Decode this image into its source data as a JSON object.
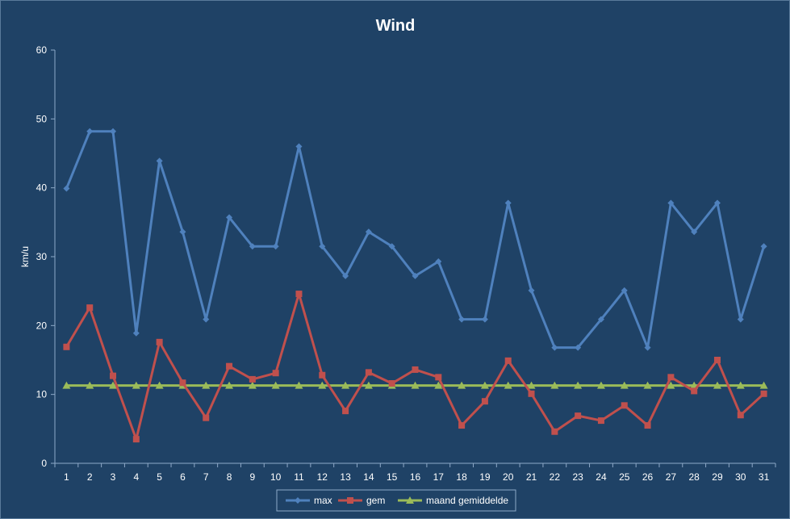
{
  "chart_data": {
    "type": "line",
    "title": "Wind",
    "xlabel": "",
    "ylabel": "km/u",
    "ylim": [
      0,
      60
    ],
    "yticks": [
      0,
      10,
      20,
      30,
      40,
      50,
      60
    ],
    "categories": [
      "1",
      "2",
      "3",
      "4",
      "5",
      "6",
      "7",
      "8",
      "9",
      "10",
      "11",
      "12",
      "13",
      "14",
      "15",
      "16",
      "17",
      "18",
      "19",
      "20",
      "21",
      "22",
      "23",
      "24",
      "25",
      "26",
      "27",
      "28",
      "29",
      "30",
      "31"
    ],
    "grid": false,
    "legend_position": "bottom",
    "series": [
      {
        "name": "max",
        "color": "#4f81bd",
        "marker": "diamond",
        "values": [
          39.9,
          48.2,
          48.2,
          18.9,
          43.9,
          33.6,
          20.9,
          35.7,
          31.5,
          31.5,
          46.0,
          31.5,
          27.2,
          33.6,
          31.5,
          27.2,
          29.3,
          20.9,
          20.9,
          37.8,
          25.1,
          16.8,
          16.8,
          20.9,
          25.1,
          16.8,
          37.8,
          33.6,
          37.8,
          20.9,
          31.5
        ]
      },
      {
        "name": "gem",
        "color": "#c0504d",
        "marker": "square",
        "values": [
          16.9,
          22.6,
          12.7,
          3.5,
          17.6,
          11.7,
          6.6,
          14.1,
          12.2,
          13.1,
          24.6,
          12.8,
          7.6,
          13.2,
          11.6,
          13.6,
          12.5,
          5.5,
          9.0,
          14.9,
          10.1,
          4.6,
          6.9,
          6.2,
          8.4,
          5.5,
          12.5,
          10.5,
          15.0,
          7.0,
          10.1
        ]
      },
      {
        "name": "maand gemiddelde",
        "color": "#9bbb59",
        "marker": "triangle",
        "values": [
          11.3,
          11.3,
          11.3,
          11.3,
          11.3,
          11.3,
          11.3,
          11.3,
          11.3,
          11.3,
          11.3,
          11.3,
          11.3,
          11.3,
          11.3,
          11.3,
          11.3,
          11.3,
          11.3,
          11.3,
          11.3,
          11.3,
          11.3,
          11.3,
          11.3,
          11.3,
          11.3,
          11.3,
          11.3,
          11.3,
          11.3
        ]
      }
    ]
  }
}
